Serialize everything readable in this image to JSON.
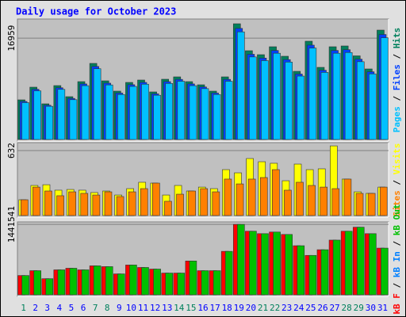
{
  "chart_data": {
    "type": "bar",
    "title": "Daily usage for October 2023",
    "categories": [
      "1",
      "2",
      "3",
      "4",
      "5",
      "6",
      "7",
      "8",
      "9",
      "10",
      "11",
      "12",
      "13",
      "14",
      "15",
      "16",
      "17",
      "18",
      "19",
      "20",
      "21",
      "22",
      "23",
      "24",
      "25",
      "26",
      "27",
      "28",
      "29",
      "30",
      "31"
    ],
    "category_label_colors": [
      "#00805c",
      "#0000ff",
      "#0000ff",
      "#0000ff",
      "#0000ff",
      "#0000ff",
      "#00805c",
      "#00805c",
      "#0000ff",
      "#0000ff",
      "#0000ff",
      "#0000ff",
      "#0000ff",
      "#00805c",
      "#00805c",
      "#0000ff",
      "#0000ff",
      "#0000ff",
      "#0000ff",
      "#0000ff",
      "#00805c",
      "#00805c",
      "#0000ff",
      "#0000ff",
      "#0000ff",
      "#0000ff",
      "#0000ff",
      "#00805c",
      "#00805c",
      "#0000ff",
      "#0000ff"
    ],
    "legend_separator": " / ",
    "panels": [
      {
        "ylim": [
          0,
          19900
        ],
        "yticks": [
          16959
        ],
        "legend_reversed": true,
        "series": [
          {
            "name": "Hits",
            "color": "#00805c",
            "values": [
              6633,
              8756,
              5970,
              9021,
              7164,
              9685,
              12736,
              9817,
              8093,
              9552,
              9950,
              7960,
              10083,
              10481,
              9685,
              9154,
              8093,
              10481,
              19370,
              14859,
              14195,
              15522,
              13930,
              11409,
              16451,
              12073,
              15522,
              15655,
              14000,
              11807,
              18308
            ]
          },
          {
            "name": "Files",
            "color": "#0040ff",
            "values": [
              6368,
              8406,
              5731,
              8660,
              6877,
              9298,
              12227,
              9424,
              7769,
              9170,
              9552,
              7642,
              9680,
              10062,
              9298,
              8788,
              7769,
              10062,
              18595,
              14265,
              13627,
              14901,
              13373,
              10953,
              15793,
              11590,
              14901,
              15029,
              13440,
              11335,
              17576
            ]
          },
          {
            "name": "Pages",
            "color": "#00c0ff",
            "values": [
              6169,
              8143,
              5552,
              8390,
              6663,
              9007,
              11844,
              9130,
              7526,
              8883,
              9254,
              7403,
              9377,
              9747,
              9007,
              8513,
              7526,
              9747,
              18014,
              13819,
              13201,
              14435,
              12955,
              10610,
              15299,
              11228,
              14435,
              14559,
              13020,
              10981,
              17026
            ]
          }
        ]
      },
      {
        "ylim": [
          0,
          694
        ],
        "yticks": [
          632
        ],
        "legend_reversed": true,
        "series": [
          {
            "name": "Visits",
            "color": "#ffff00",
            "values": [
              154,
              293,
              300,
              247,
              254,
              247,
              224,
              239,
              200,
              262,
              324,
              316,
              200,
              293,
              239,
              277,
              262,
              447,
              416,
              555,
              524,
              509,
              339,
              501,
              447,
              455,
              678,
              355,
              231,
              216,
              277
            ]
          },
          {
            "name": "Sites",
            "color": "#ff8000",
            "values": [
              154,
              277,
              239,
              193,
              231,
              216,
              200,
              231,
              185,
              231,
              262,
              316,
              139,
              208,
              239,
              262,
              231,
              355,
              308,
              355,
              370,
              447,
              247,
              324,
              293,
              277,
              262,
              355,
              216,
              216,
              277
            ]
          }
        ]
      },
      {
        "ylim": [
          0,
          1460000
        ],
        "yticks": [
          1441541
        ],
        "legend_reversed": false,
        "series": [
          {
            "name": "kB F",
            "color": "#ff0000",
            "values": [
              395000,
              494000,
              330000,
              511000,
              544000,
              511000,
              593000,
              577000,
              428000,
              610000,
              560000,
              527000,
              445000,
              445000,
              692000,
              494000,
              494000,
              890000,
              1441541,
              1302000,
              1252000,
              1285000,
              1236000,
              1005000,
              807000,
              923000,
              1120000,
              1302000,
              1384000,
              1252000,
              956000
            ]
          },
          {
            "name": "kB In",
            "color": "#0080ff",
            "values": [
              0,
              0,
              0,
              0,
              0,
              0,
              0,
              0,
              0,
              0,
              0,
              0,
              0,
              0,
              0,
              0,
              0,
              0,
              0,
              0,
              0,
              0,
              0,
              0,
              0,
              0,
              0,
              0,
              0,
              0,
              0
            ]
          },
          {
            "name": "kB Out",
            "color": "#00c000",
            "values": [
              395000,
              494000,
              330000,
              511000,
              544000,
              511000,
              593000,
              577000,
              428000,
              610000,
              560000,
              527000,
              445000,
              445000,
              692000,
              494000,
              494000,
              890000,
              1441541,
              1302000,
              1252000,
              1285000,
              1236000,
              1005000,
              807000,
              923000,
              1120000,
              1302000,
              1384000,
              1252000,
              956000
            ]
          }
        ]
      }
    ]
  }
}
